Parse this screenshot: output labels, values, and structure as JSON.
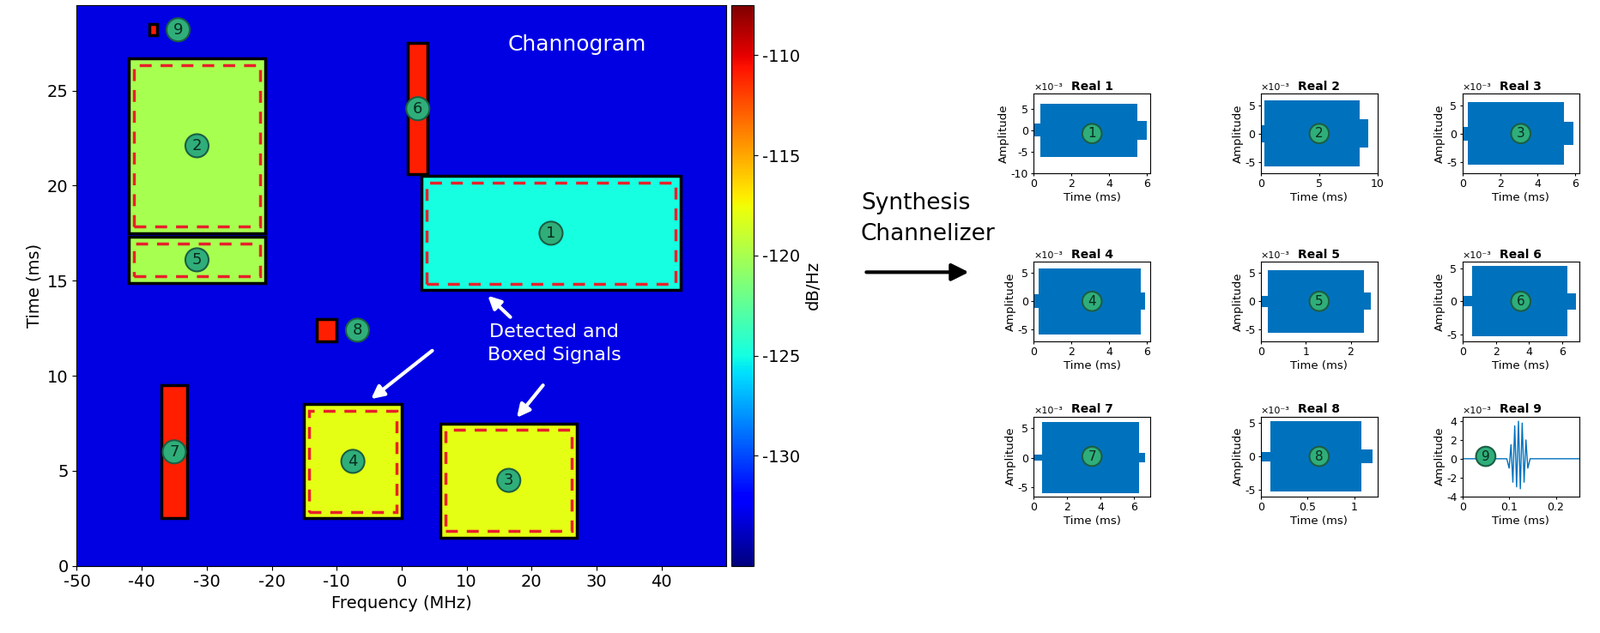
{
  "arrow_label": "Synthesis\nChannelizer",
  "chart_data": [
    {
      "type": "heatmap",
      "title": "Channogram",
      "x_label": "Frequency (MHz)",
      "y_label": "Time (ms)",
      "annotation": "Detected and\nBoxed Signals",
      "xlim": [
        -50,
        50
      ],
      "xticks": [
        -50,
        -40,
        -30,
        -20,
        -10,
        0,
        10,
        20,
        30,
        40
      ],
      "ylim": [
        0,
        29.5
      ],
      "yticks": [
        0,
        5,
        10,
        15,
        20,
        25
      ],
      "background": -133,
      "colorbar": {
        "label": "dB/Hz",
        "range": [
          -135.5,
          -107.5
        ],
        "ticks": [
          -130,
          -125,
          -120,
          -115,
          -110
        ]
      },
      "signals": [
        {
          "label": "1",
          "freq": [
            3,
            43
          ],
          "time": [
            14.5,
            20.5
          ],
          "level": -125
        },
        {
          "label": "2",
          "freq": [
            -42,
            -21
          ],
          "time": [
            17.5,
            26.7
          ],
          "level": -120
        },
        {
          "label": "3",
          "freq": [
            6,
            27
          ],
          "time": [
            1.5,
            7.5
          ],
          "level": -118
        },
        {
          "label": "4",
          "freq": [
            -15,
            0
          ],
          "time": [
            2.5,
            8.5
          ],
          "level": -118
        },
        {
          "label": "5",
          "freq": [
            -42,
            -21
          ],
          "time": [
            14.9,
            17.3
          ],
          "level": -120
        },
        {
          "label": "6",
          "freq": [
            1,
            4
          ],
          "time": [
            20.6,
            27.5
          ],
          "level": -111
        },
        {
          "label": "7",
          "freq": [
            -37,
            -33
          ],
          "time": [
            2.5,
            9.5
          ],
          "level": -111
        },
        {
          "label": "8",
          "freq": [
            -13,
            -10
          ],
          "time": [
            11.8,
            13.0
          ],
          "level": -111
        },
        {
          "label": "9",
          "freq": [
            -38.8,
            -37.6
          ],
          "time": [
            27.9,
            28.5
          ],
          "level": -111
        }
      ]
    },
    {
      "type": "area",
      "title": "Real 1",
      "label": "1",
      "x_label": "Time (ms)",
      "y_label": "Amplitude",
      "scale_label": "×10⁻³",
      "x": [
        0,
        0.35,
        0.35,
        5.5,
        5.5,
        6.0
      ],
      "values": [
        1.5,
        1.5,
        6.2,
        6.2,
        2.2,
        2.2
      ],
      "color": "#0072bd",
      "xlim": [
        0,
        6.2
      ],
      "xticks": [
        0,
        2,
        4,
        6
      ],
      "ylim": [
        -10,
        8.5
      ],
      "yticks": [
        -10,
        -5,
        0,
        5
      ]
    },
    {
      "type": "area",
      "title": "Real 2",
      "label": "2",
      "x_label": "Time (ms)",
      "y_label": "Amplitude",
      "scale_label": "×10⁻³",
      "x": [
        0,
        0.3,
        0.3,
        8.5,
        8.5,
        9.2
      ],
      "values": [
        1.5,
        1.5,
        5.8,
        5.8,
        2.5,
        2.5
      ],
      "color": "#0072bd",
      "xlim": [
        0,
        10
      ],
      "xticks": [
        0,
        5,
        10
      ],
      "ylim": [
        -7,
        7
      ],
      "yticks": [
        -5,
        0,
        5
      ]
    },
    {
      "type": "area",
      "title": "Real 3",
      "label": "3",
      "x_label": "Time (ms)",
      "y_label": "Amplitude",
      "scale_label": "×10⁻³",
      "x": [
        0,
        0.3,
        0.3,
        5.4,
        5.4,
        5.9
      ],
      "values": [
        1.2,
        1.2,
        5.5,
        5.5,
        2.0,
        2.0
      ],
      "color": "#0072bd",
      "xlim": [
        0,
        6.2
      ],
      "xticks": [
        0,
        2,
        4,
        6
      ],
      "ylim": [
        -7,
        7
      ],
      "yticks": [
        -5,
        0,
        5
      ]
    },
    {
      "type": "area",
      "title": "Real 4",
      "label": "4",
      "x_label": "Time (ms)",
      "y_label": "Amplitude",
      "scale_label": "×10⁻³",
      "x": [
        0,
        0.25,
        0.25,
        5.7,
        5.7,
        5.9
      ],
      "values": [
        1.2,
        1.2,
        5.8,
        5.8,
        1.5,
        1.5
      ],
      "color": "#0072bd",
      "xlim": [
        0,
        6.2
      ],
      "xticks": [
        0,
        2,
        4,
        6
      ],
      "ylim": [
        -7,
        7
      ],
      "yticks": [
        -5,
        0,
        5
      ]
    },
    {
      "type": "area",
      "title": "Real 5",
      "label": "5",
      "x_label": "Time (ms)",
      "y_label": "Amplitude",
      "scale_label": "×10⁻³",
      "x": [
        0,
        0.15,
        0.15,
        2.3,
        2.3,
        2.45
      ],
      "values": [
        1.0,
        1.0,
        5.5,
        5.5,
        1.5,
        1.5
      ],
      "color": "#0072bd",
      "xlim": [
        0,
        2.6
      ],
      "xticks": [
        0,
        1,
        2
      ],
      "ylim": [
        -7,
        7
      ],
      "yticks": [
        -5,
        0,
        5
      ]
    },
    {
      "type": "area",
      "title": "Real 6",
      "label": "6",
      "x_label": "Time (ms)",
      "y_label": "Amplitude",
      "scale_label": "×10⁻³",
      "x": [
        0,
        0.6,
        0.6,
        6.3,
        6.3,
        6.8
      ],
      "values": [
        0.8,
        0.8,
        5.3,
        5.3,
        1.2,
        1.2
      ],
      "color": "#0072bd",
      "xlim": [
        0,
        7
      ],
      "xticks": [
        0,
        2,
        4,
        6
      ],
      "ylim": [
        -6,
        6
      ],
      "yticks": [
        -5,
        0,
        5
      ]
    },
    {
      "type": "area",
      "title": "Real 7",
      "label": "7",
      "x_label": "Time (ms)",
      "y_label": "Amplitude",
      "scale_label": "×10⁻³",
      "x": [
        0,
        0.5,
        0.5,
        6.3,
        6.3,
        6.7
      ],
      "values": [
        0.5,
        0.5,
        6.0,
        6.0,
        0.8,
        0.8
      ],
      "color": "#0072bd",
      "xlim": [
        0,
        7
      ],
      "xticks": [
        0,
        2,
        4,
        6
      ],
      "ylim": [
        -6.5,
        7
      ],
      "yticks": [
        -5,
        0,
        5
      ]
    },
    {
      "type": "area",
      "title": "Real 8",
      "label": "8",
      "x_label": "Time (ms)",
      "y_label": "Amplitude",
      "scale_label": "×10⁻³",
      "x": [
        0,
        0.1,
        0.1,
        1.08,
        1.08,
        1.2
      ],
      "values": [
        0.7,
        0.7,
        5.3,
        5.3,
        1.0,
        1.0
      ],
      "color": "#0072bd",
      "xlim": [
        0,
        1.25
      ],
      "xticks": [
        0,
        0.5,
        1
      ],
      "ylim": [
        -6,
        6
      ],
      "yticks": [
        -5,
        0,
        5
      ]
    },
    {
      "type": "line",
      "title": "Real 9",
      "label": "9",
      "x_label": "Time (ms)",
      "y_label": "Amplitude",
      "scale_label": "×10⁻³",
      "x": [
        0,
        0.095,
        0.1,
        0.104,
        0.108,
        0.112,
        0.116,
        0.12,
        0.124,
        0.128,
        0.132,
        0.136,
        0.14,
        0.145,
        0.25
      ],
      "values": [
        0,
        0,
        -1,
        1.5,
        -2.5,
        3.5,
        -3,
        4,
        -3.2,
        3.8,
        -2.5,
        2,
        -1,
        0,
        0
      ],
      "color": "#0072bd",
      "xlim": [
        0,
        0.25
      ],
      "xticks": [
        0,
        0.1,
        0.2
      ],
      "ylim": [
        -4,
        4.5
      ],
      "yticks": [
        -4,
        -2,
        0,
        2,
        4
      ]
    }
  ]
}
